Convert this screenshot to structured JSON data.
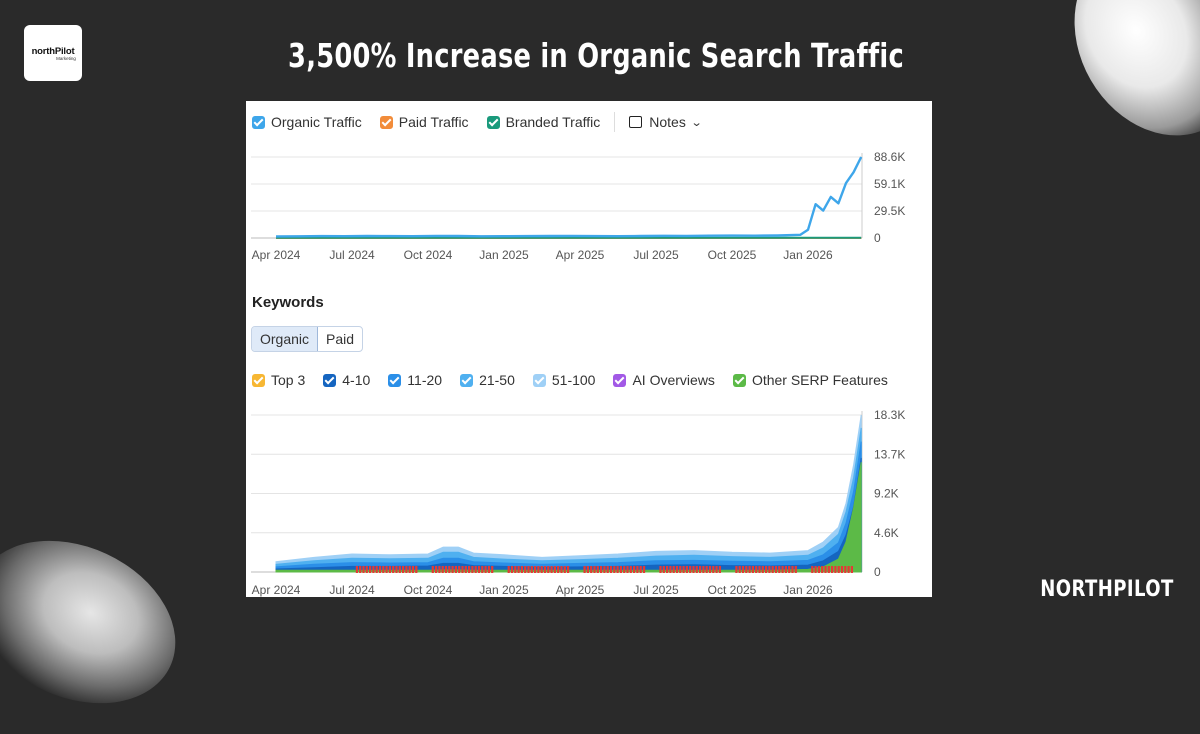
{
  "headline": "3,500% Increase in Organic Search Traffic",
  "logo": {
    "line1": "northPilot",
    "line2": "Marketing"
  },
  "brand": "NORTHPILOT",
  "traffic_legend": [
    {
      "label": "Organic Traffic",
      "color": "#3ea6ea"
    },
    {
      "label": "Paid Traffic",
      "color": "#f28c3a"
    },
    {
      "label": "Branded Traffic",
      "color": "#1a9a7c"
    }
  ],
  "notes_label": "Notes",
  "keywords_title": "Keywords",
  "keyword_tabs": [
    "Organic",
    "Paid"
  ],
  "position_legend": [
    {
      "label": "Top 3",
      "color": "#f7b733"
    },
    {
      "label": "4-10",
      "color": "#1565c0"
    },
    {
      "label": "11-20",
      "color": "#2b8fe8"
    },
    {
      "label": "21-50",
      "color": "#4fb0f0"
    },
    {
      "label": "51-100",
      "color": "#9fd0f6"
    },
    {
      "label": "AI Overviews",
      "color": "#a259e6"
    },
    {
      "label": "Other SERP Features",
      "color": "#5cba47"
    }
  ],
  "chart_data": [
    {
      "type": "line",
      "x_ticks": [
        "Apr 2024",
        "Jul 2024",
        "Oct 2024",
        "Jan 2025",
        "Apr 2025",
        "Jul 2025",
        "Oct 2025",
        "Jan 2026"
      ],
      "y_ticks": [
        "88.6K",
        "59.1K",
        "29.5K",
        "0"
      ],
      "ylim": [
        0,
        88600
      ],
      "series": [
        {
          "name": "Organic Traffic",
          "color": "#3ea6ea",
          "x": [
            0,
            0.3,
            0.6,
            0.9,
            1.2,
            1.5,
            1.8,
            2.1,
            2.4,
            2.7,
            3.0,
            3.3,
            3.6,
            3.9,
            4.2,
            4.5,
            4.8,
            5.1,
            5.4,
            5.7,
            6.0,
            6.3,
            6.6,
            6.9,
            7.0,
            7.1,
            7.2,
            7.3,
            7.4,
            7.5,
            7.6,
            7.7
          ],
          "y": [
            1800,
            1900,
            2100,
            2000,
            2200,
            2100,
            2000,
            2300,
            2200,
            1900,
            2000,
            2100,
            2200,
            2300,
            2100,
            2000,
            2200,
            2400,
            2300,
            2500,
            2600,
            2500,
            2700,
            3500,
            9000,
            37000,
            30000,
            45000,
            38000,
            60000,
            72000,
            88600
          ]
        },
        {
          "name": "Paid Traffic",
          "color": "#f28c3a",
          "x": [
            0,
            7.7
          ],
          "y": [
            0,
            0
          ]
        },
        {
          "name": "Branded Traffic",
          "color": "#1a9a7c",
          "x": [
            0,
            7.7
          ],
          "y": [
            200,
            300
          ]
        }
      ]
    },
    {
      "type": "area",
      "x_ticks": [
        "Apr 2024",
        "Jul 2024",
        "Oct 2024",
        "Jan 2025",
        "Apr 2025",
        "Jul 2025",
        "Oct 2025",
        "Jan 2026"
      ],
      "y_ticks": [
        "18.3K",
        "13.7K",
        "9.2K",
        "4.6K",
        "0"
      ],
      "ylim": [
        0,
        18300
      ],
      "x": [
        0,
        0.5,
        1.0,
        1.5,
        2.0,
        2.2,
        2.4,
        2.6,
        3.0,
        3.5,
        4.0,
        4.5,
        5.0,
        5.5,
        6.0,
        6.5,
        7.0,
        7.2,
        7.4,
        7.5,
        7.6,
        7.7
      ],
      "series": [
        {
          "name": "51-100",
          "color": "#9fd0f6",
          "values": [
            1200,
            1700,
            2100,
            2000,
            2100,
            2900,
            2900,
            2200,
            2000,
            1700,
            1900,
            2100,
            2400,
            2500,
            2300,
            2200,
            2500,
            3500,
            5200,
            8000,
            12500,
            18300
          ]
        },
        {
          "name": "21-50",
          "color": "#4fb0f0",
          "values": [
            900,
            1300,
            1600,
            1550,
            1600,
            2300,
            2300,
            1700,
            1500,
            1300,
            1450,
            1600,
            1850,
            1950,
            1800,
            1700,
            1950,
            2800,
            4400,
            7000,
            11000,
            16800
          ]
        },
        {
          "name": "11-20",
          "color": "#2b8fe8",
          "values": [
            600,
            900,
            1100,
            1050,
            1100,
            1600,
            1600,
            1200,
            1050,
            900,
            1000,
            1100,
            1300,
            1350,
            1250,
            1200,
            1350,
            2000,
            3400,
            5700,
            9400,
            15200
          ]
        },
        {
          "name": "4-10",
          "color": "#1565c0",
          "values": [
            350,
            500,
            650,
            650,
            700,
            1000,
            1000,
            750,
            650,
            550,
            600,
            650,
            800,
            850,
            750,
            700,
            800,
            1300,
            2400,
            4300,
            7600,
            13300
          ]
        },
        {
          "name": "Other SERP Features",
          "color": "#5cba47",
          "values": [
            200,
            200,
            200,
            200,
            200,
            250,
            250,
            200,
            200,
            200,
            200,
            200,
            200,
            200,
            200,
            200,
            300,
            600,
            1500,
            3500,
            7500,
            12800
          ]
        }
      ]
    }
  ]
}
